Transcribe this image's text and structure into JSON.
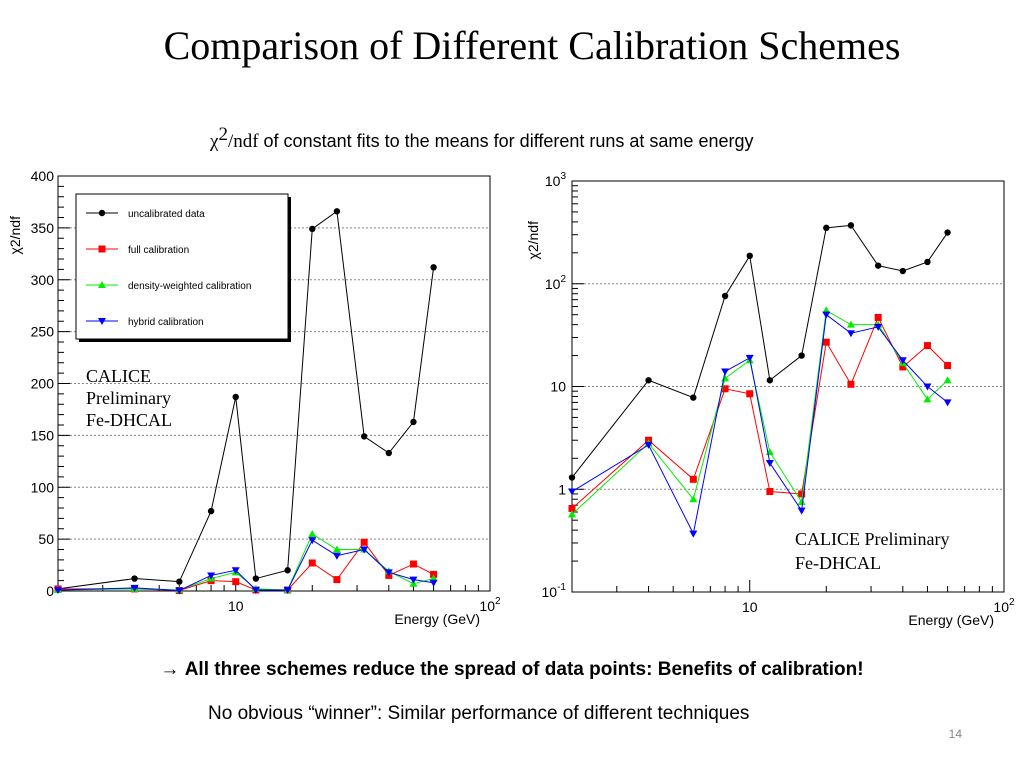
{
  "slide": {
    "title": "Comparison of Different Calibration Schemes",
    "subtitle_chi": "χ",
    "subtitle_sup": "2",
    "subtitle_ndf": "/ndf",
    "subtitle_rest": " of constant fits to the means for different runs at same energy",
    "conclusion_arrow": "→ ",
    "conclusion_text": "All three schemes reduce the spread of data points: Benefits of calibration!",
    "note": "No obvious “winner”: Similar performance of different techniques",
    "page_number": "14"
  },
  "colors": {
    "uncalibrated": "#000000",
    "full": "#ff0000",
    "density": "#00ee00",
    "hybrid": "#0000ff",
    "grid": "#888888"
  },
  "chart_data": [
    {
      "type": "line",
      "yscale": "linear",
      "xscale": "log",
      "xlabel": "Energy (GeV)",
      "ylabel": "χ2/ndf",
      "xlim": [
        2,
        100
      ],
      "ylim": [
        0,
        400
      ],
      "yticks": [
        "0",
        "50",
        "100",
        "150",
        "200",
        "250",
        "300",
        "350",
        "400"
      ],
      "xticks": [
        {
          "base": "10",
          "exp": ""
        },
        {
          "base": "10",
          "exp": "2"
        }
      ],
      "grid": "horizontal dotted",
      "legend_position": "top-left",
      "annotation": [
        "CALICE",
        "Preliminary",
        "Fe-DHCAL"
      ],
      "x": [
        2,
        4,
        6,
        8,
        10,
        12,
        16,
        20,
        25,
        32,
        40,
        50,
        60
      ],
      "series": [
        {
          "name": "uncalibrated data",
          "marker": "circle",
          "values": [
            2,
            12,
            9,
            77,
            187,
            12,
            20,
            349,
            366,
            149,
            133,
            163,
            312
          ]
        },
        {
          "name": "full calibration",
          "marker": "square",
          "values": [
            2,
            2,
            0.5,
            10,
            9,
            1,
            1,
            27,
            11,
            47,
            15,
            26,
            16
          ]
        },
        {
          "name": "density-weighted calibration",
          "marker": "triangle-up",
          "values": [
            1,
            2,
            1,
            12,
            18,
            2,
            1,
            55,
            40,
            40,
            19,
            7,
            12
          ]
        },
        {
          "name": "hybrid calibration",
          "marker": "triangle-down",
          "values": [
            1,
            3,
            0.5,
            15,
            20,
            1,
            1,
            49,
            34,
            40,
            18,
            11,
            8
          ]
        }
      ]
    },
    {
      "type": "line",
      "yscale": "log",
      "xscale": "log",
      "xlabel": "Energy (GeV)",
      "ylabel": "χ2/ndf",
      "xlim": [
        2,
        100
      ],
      "ylim": [
        0.1,
        1000
      ],
      "yticks": [
        {
          "base": "10",
          "exp": "-1"
        },
        {
          "base": "1",
          "exp": ""
        },
        {
          "base": "10",
          "exp": ""
        },
        {
          "base": "10",
          "exp": "2"
        },
        {
          "base": "10",
          "exp": "3"
        }
      ],
      "xticks": [
        {
          "base": "10",
          "exp": ""
        },
        {
          "base": "10",
          "exp": "2"
        }
      ],
      "grid": "horizontal dotted",
      "annotation": [
        "CALICE Preliminary",
        "Fe-DHCAL"
      ],
      "x": [
        2,
        4,
        6,
        8,
        10,
        12,
        16,
        20,
        25,
        32,
        40,
        50,
        60
      ],
      "series": [
        {
          "name": "uncalibrated data",
          "marker": "circle",
          "values": [
            1.3,
            11.5,
            7.8,
            76,
            187,
            11.5,
            20,
            350,
            370,
            150,
            133,
            163,
            315
          ]
        },
        {
          "name": "full calibration",
          "marker": "square",
          "values": [
            0.65,
            3,
            1.25,
            9.5,
            8.5,
            0.95,
            0.9,
            27,
            10.5,
            47,
            15.5,
            25,
            16
          ]
        },
        {
          "name": "density-weighted calibration",
          "marker": "triangle-up",
          "values": [
            0.57,
            2.8,
            0.8,
            12,
            18,
            2.3,
            0.75,
            55,
            40,
            40,
            17,
            7.5,
            11.5
          ]
        },
        {
          "name": "hybrid calibration",
          "marker": "triangle-down",
          "values": [
            0.95,
            2.7,
            0.37,
            14,
            19,
            1.8,
            0.62,
            50,
            33,
            38,
            18,
            10,
            7
          ]
        }
      ]
    }
  ]
}
